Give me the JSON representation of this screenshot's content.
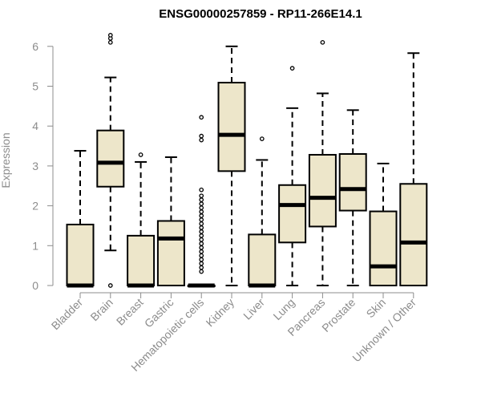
{
  "chart_data": {
    "type": "boxplot",
    "title": "ENSG00000257859 - RP11-266E14.1",
    "xlabel": "",
    "ylabel": "Expression",
    "ylim": [
      0,
      6
    ],
    "yticks": [
      0,
      1,
      2,
      3,
      4,
      5,
      6
    ],
    "categories": [
      "Bladder",
      "Brain",
      "Breast",
      "Gastric",
      "Hematopoietic cells",
      "Kidney",
      "Liver",
      "Lung",
      "Pancreas",
      "Prostate",
      "Skin",
      "Unknown / Other"
    ],
    "boxes": [
      {
        "whisker_low": 0,
        "q1": 0,
        "median": 0,
        "q3": 1.53,
        "whisker_high": 3.38,
        "outliers": []
      },
      {
        "whisker_low": 0.88,
        "q1": 2.48,
        "median": 3.08,
        "q3": 3.89,
        "whisker_high": 5.22,
        "outliers": [
          0,
          6.1,
          6.2,
          6.28
        ]
      },
      {
        "whisker_low": 0,
        "q1": 0,
        "median": 0,
        "q3": 1.25,
        "whisker_high": 3.1,
        "outliers": [
          3.28
        ]
      },
      {
        "whisker_low": 0,
        "q1": 0,
        "median": 1.18,
        "q3": 1.62,
        "whisker_high": 3.22,
        "outliers": []
      },
      {
        "whisker_low": 0,
        "q1": 0,
        "median": 0,
        "q3": 0,
        "whisker_high": 0,
        "outliers": [
          0.35,
          0.45,
          0.55,
          0.65,
          0.75,
          0.85,
          0.95,
          1.05,
          1.15,
          1.25,
          1.35,
          1.45,
          1.55,
          1.65,
          1.75,
          1.85,
          1.95,
          2.05,
          2.15,
          2.25,
          2.4,
          3.65,
          3.75,
          4.22
        ]
      },
      {
        "whisker_low": 0,
        "q1": 2.87,
        "median": 3.78,
        "q3": 5.09,
        "whisker_high": 6.0,
        "outliers": []
      },
      {
        "whisker_low": 0,
        "q1": 0,
        "median": 0,
        "q3": 1.28,
        "whisker_high": 3.15,
        "outliers": [
          3.68
        ]
      },
      {
        "whisker_low": 0,
        "q1": 1.08,
        "median": 2.02,
        "q3": 2.52,
        "whisker_high": 4.45,
        "outliers": [
          5.45
        ]
      },
      {
        "whisker_low": 0,
        "q1": 1.48,
        "median": 2.2,
        "q3": 3.28,
        "whisker_high": 4.82,
        "outliers": [
          6.1
        ]
      },
      {
        "whisker_low": 0,
        "q1": 1.88,
        "median": 2.42,
        "q3": 3.3,
        "whisker_high": 4.4,
        "outliers": []
      },
      {
        "whisker_low": 0,
        "q1": 0,
        "median": 0.48,
        "q3": 1.86,
        "whisker_high": 3.06,
        "outliers": []
      },
      {
        "whisker_low": 0,
        "q1": 0,
        "median": 1.08,
        "q3": 2.55,
        "whisker_high": 5.83,
        "outliers": []
      }
    ],
    "box_fill": "#ede6ca",
    "box_stroke": "#000000",
    "axis_color": "#8c8c8c",
    "grid": false,
    "legend": "none"
  }
}
